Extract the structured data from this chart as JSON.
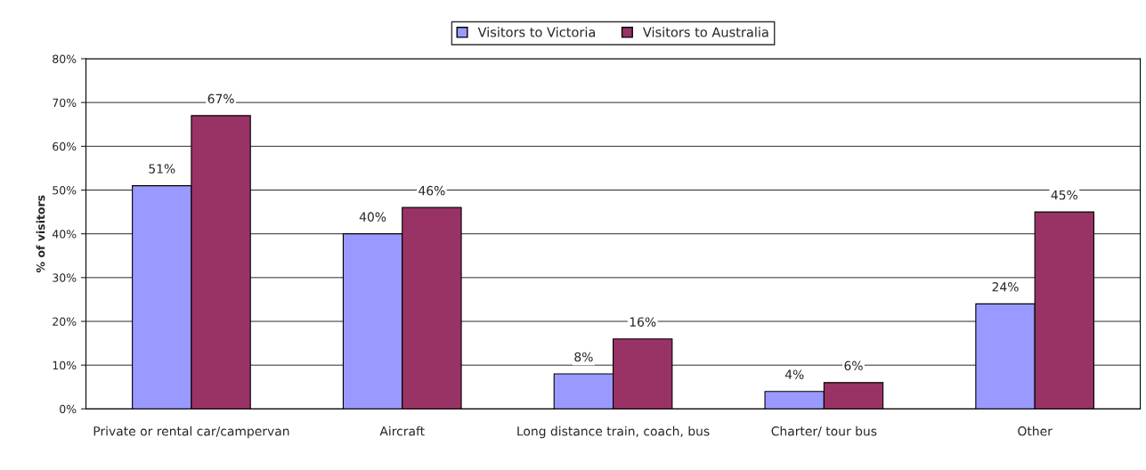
{
  "chart_data": {
    "type": "bar",
    "ylabel": "% of visitors",
    "categories": [
      "Private or rental car/campervan",
      "Aircraft",
      "Long distance train, coach, bus",
      "Charter/ tour bus",
      "Other"
    ],
    "series": [
      {
        "name": "Visitors to Victoria",
        "color": "#9999ff",
        "values": [
          51,
          40,
          8,
          4,
          24
        ],
        "value_labels": [
          "51%",
          "40%",
          "8%",
          "4%",
          "24%"
        ]
      },
      {
        "name": "Visitors to Australia",
        "color": "#993366",
        "values": [
          67,
          46,
          16,
          6,
          45
        ],
        "value_labels": [
          "67%",
          "46%",
          "16%",
          "6%",
          "45%"
        ]
      }
    ],
    "ylim": [
      0,
      80
    ],
    "yticks": [
      {
        "value": 0,
        "label": "0%"
      },
      {
        "value": 10,
        "label": "10%"
      },
      {
        "value": 20,
        "label": "20%"
      },
      {
        "value": 30,
        "label": "30%"
      },
      {
        "value": 40,
        "label": "40%"
      },
      {
        "value": 50,
        "label": "50%"
      },
      {
        "value": 60,
        "label": "60%"
      },
      {
        "value": 70,
        "label": "70%"
      },
      {
        "value": 80,
        "label": "80%"
      }
    ],
    "grid": "y",
    "legend": "top"
  }
}
